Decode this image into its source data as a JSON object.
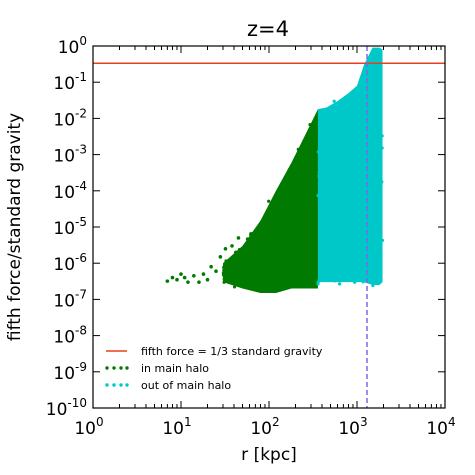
{
  "chart_data": {
    "type": "scatter",
    "title": "z=4",
    "xlabel": "r [kpc]",
    "ylabel": "fifth force/standard gravity",
    "xscale": "log",
    "yscale": "log",
    "xlim": [
      1,
      10000
    ],
    "ylim": [
      1e-10,
      1
    ],
    "x_ticks": [
      {
        "value": 1,
        "base": "10",
        "exp": "0"
      },
      {
        "value": 10,
        "base": "10",
        "exp": "1"
      },
      {
        "value": 100,
        "base": "10",
        "exp": "2"
      },
      {
        "value": 1000,
        "base": "10",
        "exp": "3"
      },
      {
        "value": 10000,
        "base": "10",
        "exp": "4"
      }
    ],
    "y_ticks": [
      {
        "value": 1,
        "base": "10",
        "exp": "0"
      },
      {
        "value": 0.1,
        "base": "10",
        "exp": "-1"
      },
      {
        "value": 0.01,
        "base": "10",
        "exp": "-2"
      },
      {
        "value": 0.001,
        "base": "10",
        "exp": "-3"
      },
      {
        "value": 0.0001,
        "base": "10",
        "exp": "-4"
      },
      {
        "value": 1e-05,
        "base": "10",
        "exp": "-5"
      },
      {
        "value": 1e-06,
        "base": "10",
        "exp": "-6"
      },
      {
        "value": 1e-07,
        "base": "10",
        "exp": "-7"
      },
      {
        "value": 1e-08,
        "base": "10",
        "exp": "-8"
      },
      {
        "value": 1e-09,
        "base": "10",
        "exp": "-9"
      },
      {
        "value": 1e-10,
        "base": "10",
        "exp": "-10"
      }
    ],
    "hline": {
      "y": 0.333,
      "color": "#e8401c",
      "label": "fifth force = 1/3 standard gravity"
    },
    "vline": {
      "x": 1300,
      "color": "#7b68ee",
      "style": "dashed"
    },
    "series": [
      {
        "name": "in main halo",
        "color": "#007a00",
        "envelope": [
          {
            "x": 30,
            "lower": 3e-07,
            "upper": 1e-06
          },
          {
            "x": 50,
            "lower": 2e-07,
            "upper": 3e-06
          },
          {
            "x": 80,
            "lower": 1.5e-07,
            "upper": 1.5e-05
          },
          {
            "x": 120,
            "lower": 1.5e-07,
            "upper": 0.0001
          },
          {
            "x": 180,
            "lower": 2e-07,
            "upper": 0.0006
          },
          {
            "x": 250,
            "lower": 2e-07,
            "upper": 0.003
          },
          {
            "x": 360,
            "lower": 2e-07,
            "upper": 0.018
          }
        ],
        "sparse_points": [
          {
            "x": 7,
            "y": 3.2e-07
          },
          {
            "x": 8,
            "y": 4e-07
          },
          {
            "x": 9,
            "y": 3.5e-07
          },
          {
            "x": 10,
            "y": 5e-07
          },
          {
            "x": 11,
            "y": 4e-07
          },
          {
            "x": 12,
            "y": 3e-07
          },
          {
            "x": 14,
            "y": 4.5e-07
          },
          {
            "x": 16,
            "y": 3e-07
          },
          {
            "x": 18,
            "y": 5e-07
          },
          {
            "x": 20,
            "y": 3.5e-07
          },
          {
            "x": 22,
            "y": 8e-07
          },
          {
            "x": 25,
            "y": 6e-07
          },
          {
            "x": 28,
            "y": 1.5e-06
          },
          {
            "x": 32,
            "y": 2.5e-06
          },
          {
            "x": 35,
            "y": 1e-06
          },
          {
            "x": 38,
            "y": 3e-06
          },
          {
            "x": 42,
            "y": 2e-06
          },
          {
            "x": 45,
            "y": 5e-06
          }
        ]
      },
      {
        "name": "out of main halo",
        "color": "#00c8c8",
        "envelope": [
          {
            "x": 360,
            "lower": 3e-07,
            "upper": 0.018
          },
          {
            "x": 450,
            "lower": 3e-07,
            "upper": 0.02
          },
          {
            "x": 600,
            "lower": 3e-07,
            "upper": 0.03
          },
          {
            "x": 800,
            "lower": 3e-07,
            "upper": 0.05
          },
          {
            "x": 1000,
            "lower": 3e-07,
            "upper": 0.08
          },
          {
            "x": 1200,
            "lower": 3e-07,
            "upper": 0.3
          },
          {
            "x": 1500,
            "lower": 2.5e-07,
            "upper": 0.9
          },
          {
            "x": 1800,
            "lower": 2.5e-07,
            "upper": 0.9
          },
          {
            "x": 1950,
            "lower": 3e-07,
            "upper": 0.8
          }
        ]
      }
    ],
    "legend": {
      "placement": "lower-left",
      "entries": [
        "fifth force = 1/3 standard gravity",
        "in main halo",
        "out of main halo"
      ]
    }
  }
}
